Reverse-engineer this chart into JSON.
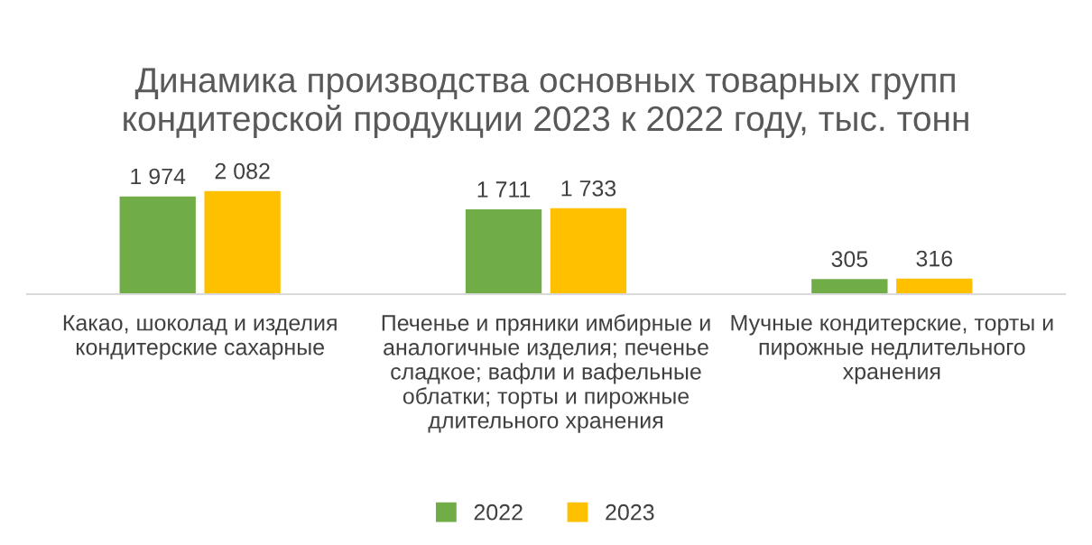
{
  "chart_data": {
    "type": "bar",
    "title": "Динамика производства основных товарных групп\nкондитерской продукции 2023 к 2022 году, тыс. тонн",
    "categories": [
      "Какао, шоколад и изделия\nкондитерские сахарные",
      "Печенье и пряники имбирные и\nаналогичные изделия; печенье\nсладкое; вафли и вафельные\nоблатки; торты и пирожные\nдлительного хранения",
      "Мучные кондитерские, торты и\nпирожные недлительного\nхранения"
    ],
    "series": [
      {
        "name": "2022",
        "color": "#70ad47",
        "values": [
          1974,
          1711,
          305
        ],
        "value_labels": [
          "1 974",
          "1 711",
          "305"
        ]
      },
      {
        "name": "2023",
        "color": "#ffc000",
        "values": [
          2082,
          1733,
          316
        ],
        "value_labels": [
          "2 082",
          "1 733",
          "316"
        ]
      }
    ],
    "legend": "bottom"
  }
}
